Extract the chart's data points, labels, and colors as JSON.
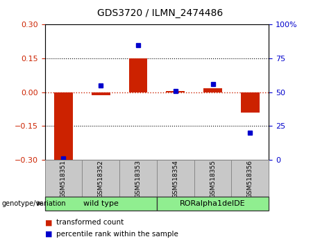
{
  "title": "GDS3720 / ILMN_2474486",
  "samples": [
    "GSM518351",
    "GSM518352",
    "GSM518353",
    "GSM518354",
    "GSM518355",
    "GSM518356"
  ],
  "red_values": [
    -0.305,
    -0.012,
    0.15,
    0.005,
    0.018,
    -0.09
  ],
  "blue_values_pct": [
    1,
    55,
    85,
    51,
    56,
    20
  ],
  "ylim_left": [
    -0.3,
    0.3
  ],
  "ylim_right": [
    0,
    100
  ],
  "yticks_left": [
    -0.3,
    -0.15,
    0,
    0.15,
    0.3
  ],
  "yticks_right": [
    0,
    25,
    50,
    75,
    100
  ],
  "hlines": [
    0.15,
    -0.15
  ],
  "group_label": "genotype/variation",
  "legend_red": "transformed count",
  "legend_blue": "percentile rank within the sample",
  "bar_width": 0.5,
  "red_color": "#CC2200",
  "blue_color": "#0000CC",
  "zero_line_color": "#CC2200",
  "dotted_line_color": "#000000",
  "bg_color": "#FFFFFF",
  "tick_label_color_left": "#CC2200",
  "tick_label_color_right": "#0000CC",
  "gray_box_color": "#C8C8C8",
  "green_box_color": "#90EE90",
  "wt_label": "wild type",
  "ror_label": "RORalpha1delDE",
  "right_tick_labels": [
    "0",
    "25",
    "50",
    "75",
    "100%"
  ]
}
